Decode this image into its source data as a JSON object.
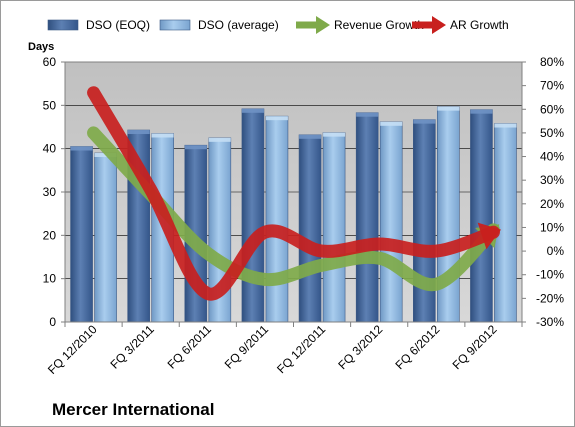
{
  "chart_data": {
    "type": "bar",
    "title": "Mercer International",
    "ylabel": "Days",
    "ylim": [
      0,
      60
    ],
    "y2lim": [
      -30,
      80
    ],
    "y2_unit": "%",
    "categories": [
      "FQ 12/2010",
      "FQ 3/2011",
      "FQ 6/2011",
      "FQ 9/2011",
      "FQ 12/2011",
      "FQ 3/2012",
      "FQ 6/2012",
      "FQ 9/2012"
    ],
    "left_ticks": [
      "0",
      "10",
      "20",
      "30",
      "40",
      "50",
      "60"
    ],
    "right_ticks": [
      "-30%",
      "-20%",
      "-10%",
      "0%",
      "10%",
      "20%",
      "30%",
      "40%",
      "50%",
      "60%",
      "70%",
      "80%"
    ],
    "series": [
      {
        "name": "DSO (EOQ)",
        "kind": "bar",
        "axis": "left",
        "color": "#4a6fa5",
        "values": [
          40.5,
          44.3,
          40.8,
          49.2,
          43.2,
          48.3,
          46.7,
          49.0
        ]
      },
      {
        "name": "DSO (average)",
        "kind": "bar",
        "axis": "left",
        "color": "#8fb8e0",
        "values": [
          39.0,
          43.5,
          42.5,
          47.5,
          43.7,
          46.2,
          49.7,
          45.8
        ]
      },
      {
        "name": "Revenue Growth",
        "kind": "line",
        "axis": "right",
        "color": "#7faa4a",
        "values": [
          50,
          24,
          -1,
          -12,
          -6,
          -3,
          -14,
          9
        ]
      },
      {
        "name": "AR Growth",
        "kind": "line",
        "axis": "right",
        "color": "#c8201e",
        "values": [
          67,
          26,
          -18,
          8,
          0,
          3,
          0,
          8
        ]
      }
    ],
    "legend_position": "top",
    "grid": true
  }
}
